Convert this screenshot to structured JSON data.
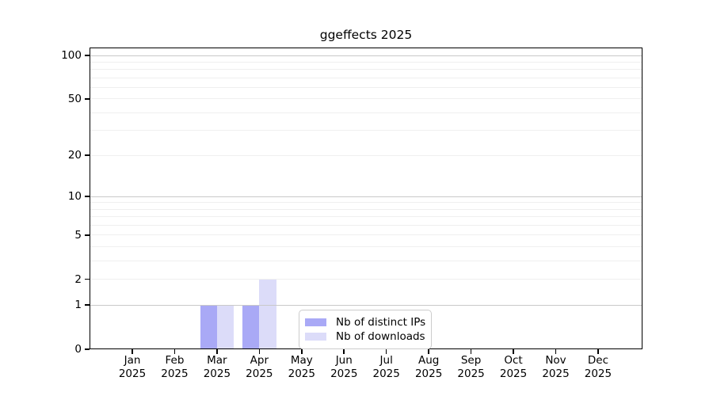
{
  "chart_data": {
    "type": "bar",
    "title": "ggeffects 2025",
    "categories": [
      "Jan 2025",
      "Feb 2025",
      "Mar 2025",
      "Apr 2025",
      "May 2025",
      "Jun 2025",
      "Jul 2025",
      "Aug 2025",
      "Sep 2025",
      "Oct 2025",
      "Nov 2025",
      "Dec 2025"
    ],
    "series": [
      {
        "name": "Nb of distinct IPs",
        "color": "#a9a9f6",
        "values": [
          0,
          0,
          1,
          1,
          0,
          0,
          0,
          0,
          0,
          0,
          0,
          0
        ]
      },
      {
        "name": "Nb of downloads",
        "color": "#dcdcf9",
        "values": [
          0,
          0,
          1,
          2,
          0,
          0,
          0,
          0,
          0,
          0,
          0,
          0
        ]
      }
    ],
    "y_ticks": [
      0,
      1,
      2,
      5,
      10,
      20,
      50,
      100
    ],
    "y_scale": "log1p",
    "ylim": [
      0,
      113
    ],
    "xlabel": "",
    "ylabel": "",
    "grid": "horizontal",
    "legend_position": "inside-bottom-center"
  }
}
